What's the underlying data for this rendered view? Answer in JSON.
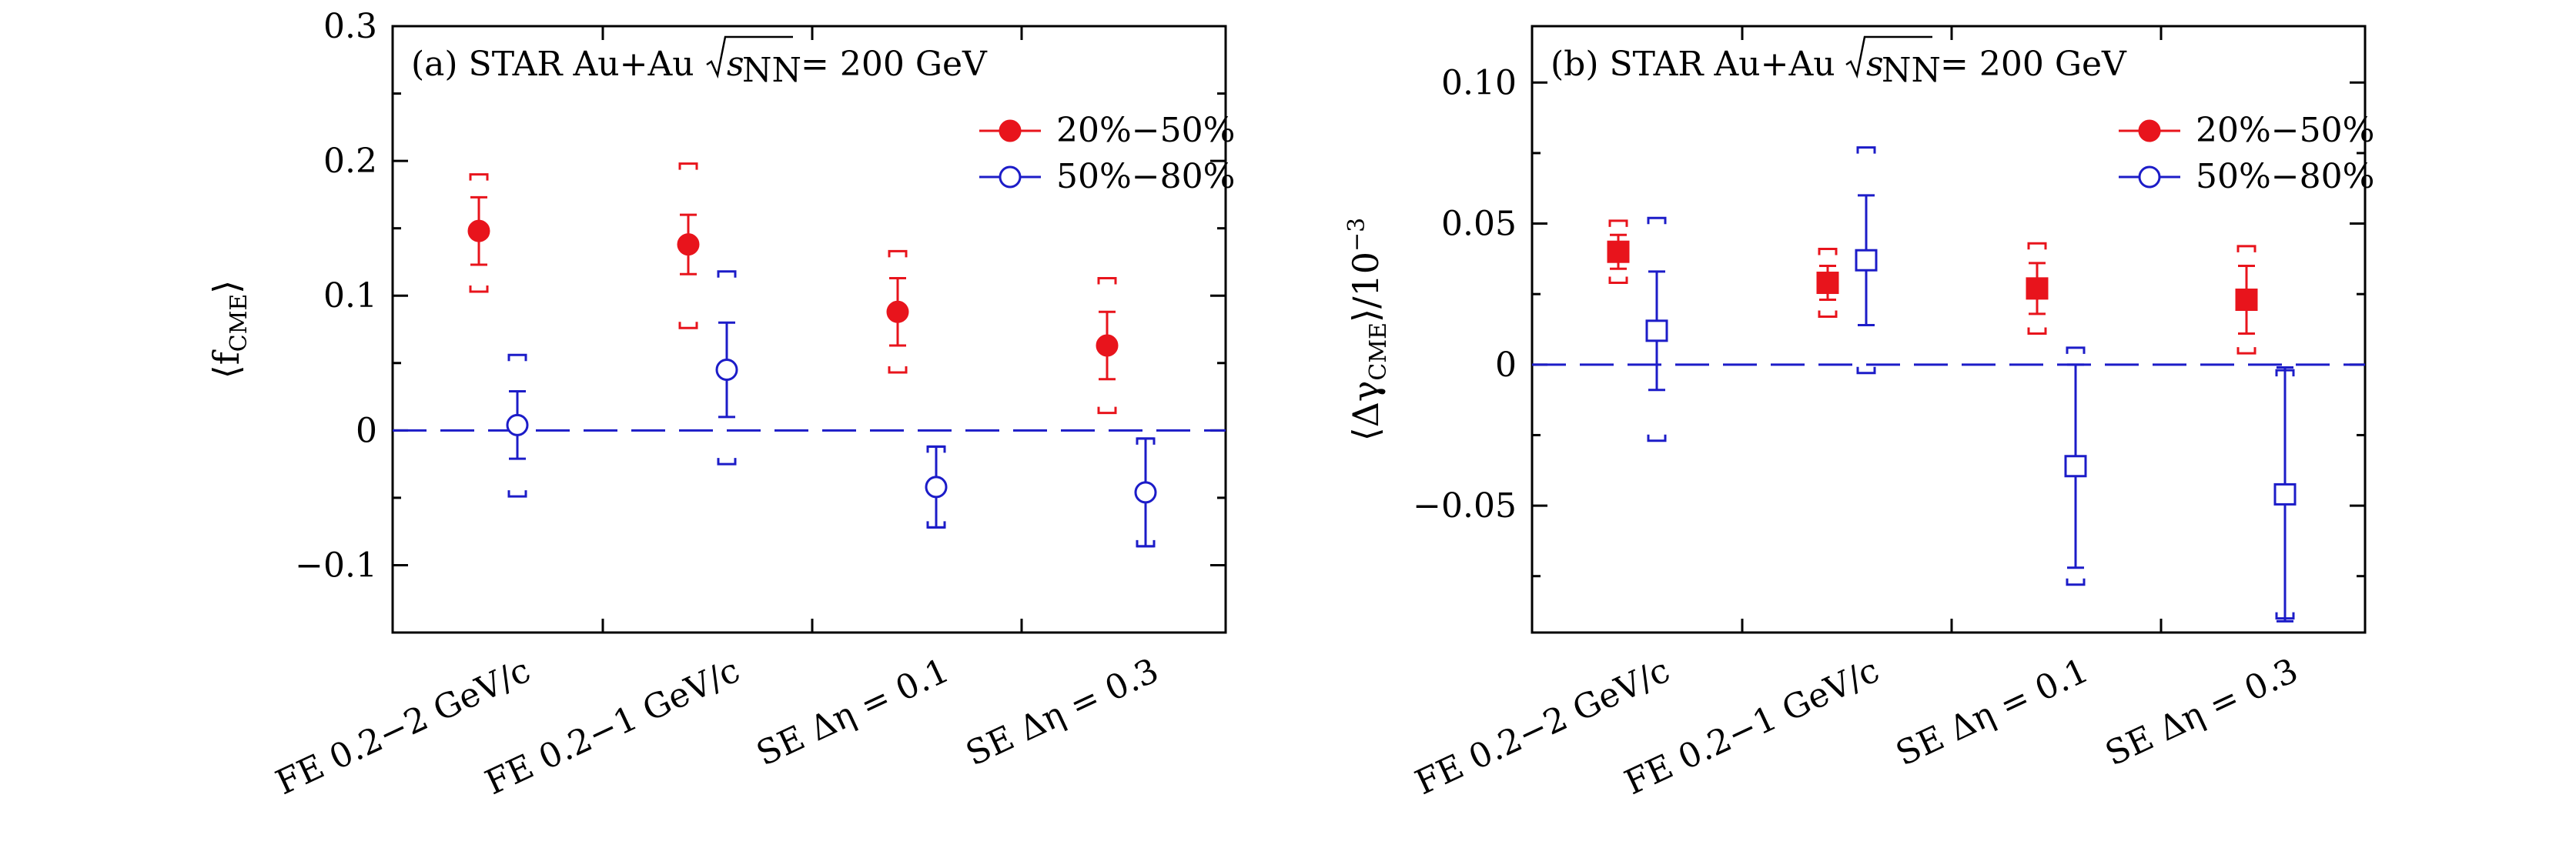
{
  "chart_data": [
    {
      "type": "scatter",
      "panel": "(a)",
      "title": "(a) STAR Au+Au √s_NN = 200 GeV",
      "title_text": "(a) STAR Au+Au",
      "title_energy": "= 200 GeV",
      "ylabel": "⟨f_CME⟩",
      "ylabel_text": "⟨f",
      "ylabel_sub": "CME",
      "ylabel_close": "⟩",
      "ylim": [
        -0.15,
        0.3
      ],
      "yticks": [
        -0.1,
        0,
        0.1,
        0.2,
        0.3
      ],
      "ytick_labels": [
        "−0.1",
        "0",
        "0.1",
        "0.2",
        "0.3"
      ],
      "categories": [
        "FE 0.2−2 GeV/c",
        "FE 0.2−1 GeV/c",
        "SE Δη = 0.1",
        "SE Δη = 0.3"
      ],
      "reference_line": 0,
      "series": [
        {
          "name": "20%−50%",
          "color": "#e8141c",
          "marker": "filled-circle",
          "values": [
            0.148,
            0.138,
            0.088,
            0.063
          ],
          "stat_err": [
            0.025,
            0.022,
            0.025,
            0.025
          ],
          "sys_low": [
            0.045,
            0.062,
            0.045,
            0.05
          ],
          "sys_high": [
            0.042,
            0.06,
            0.045,
            0.05
          ]
        },
        {
          "name": "50%−80%",
          "color": "#1c1cc8",
          "marker": "open-circle",
          "values": [
            0.004,
            0.045,
            -0.042,
            -0.046
          ],
          "stat_err": [
            0.025,
            0.035,
            0.03,
            0.04
          ],
          "sys_low": [
            0.053,
            0.07,
            0.03,
            0.04
          ],
          "sys_high": [
            0.052,
            0.073,
            0.03,
            0.04
          ]
        }
      ]
    },
    {
      "type": "scatter",
      "panel": "(b)",
      "title": "(b) STAR Au+Au √s_NN = 200 GeV",
      "title_text": "(b) STAR Au+Au",
      "title_energy": "= 200 GeV",
      "ylabel": "⟨Δγ_CME⟩/10⁻³",
      "ylabel_text": "⟨Δγ",
      "ylabel_sub": "CME",
      "ylabel_close": "⟩/10",
      "ylabel_sup": "−3",
      "ylim": [
        -0.095,
        0.12
      ],
      "yticks": [
        -0.05,
        0,
        0.05,
        0.1
      ],
      "ytick_labels": [
        "−0.05",
        "0",
        "0.05",
        "0.10"
      ],
      "categories": [
        "FE 0.2−2 GeV/c",
        "FE 0.2−1 GeV/c",
        "SE Δη = 0.1",
        "SE Δη = 0.3"
      ],
      "reference_line": 0,
      "series": [
        {
          "name": "20%−50%",
          "color": "#e8141c",
          "marker": "filled-square",
          "values": [
            0.04,
            0.029,
            0.027,
            0.023
          ],
          "stat_err": [
            0.006,
            0.006,
            0.009,
            0.012
          ],
          "sys_low": [
            0.011,
            0.012,
            0.016,
            0.019
          ],
          "sys_high": [
            0.011,
            0.012,
            0.016,
            0.019
          ]
        },
        {
          "name": "50%−80%",
          "color": "#1c1cc8",
          "marker": "open-square",
          "values": [
            0.012,
            0.037,
            -0.036,
            -0.046
          ],
          "stat_err": [
            0.021,
            0.023,
            0.036,
            0.045
          ],
          "sys_low": [
            0.039,
            0.04,
            0.042,
            0.044
          ],
          "sys_high": [
            0.04,
            0.04,
            0.042,
            0.044
          ]
        }
      ]
    }
  ],
  "legend": {
    "label_a": "20%−50%",
    "label_b": "50%−80%"
  }
}
